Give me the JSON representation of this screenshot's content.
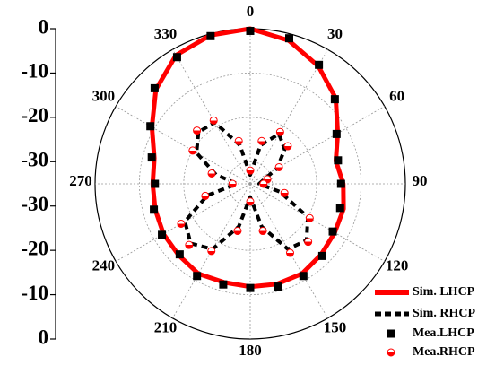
{
  "chart_data": {
    "type": "polar",
    "direction": "clockwise",
    "zero": "top",
    "theta": [
      0,
      15,
      30,
      45,
      60,
      75,
      90,
      105,
      120,
      135,
      150,
      165,
      180,
      195,
      210,
      225,
      240,
      255,
      270,
      285,
      300,
      315,
      330,
      345
    ],
    "rlim": [
      -35,
      0
    ],
    "rticks": [
      0,
      -10,
      -20,
      -30
    ],
    "thetaticks": [
      0,
      30,
      60,
      90,
      120,
      150,
      180,
      210,
      240,
      270,
      300,
      330
    ],
    "grid": true,
    "legend": "lower right",
    "series": [
      {
        "name": "Sim. LHCP",
        "color": "#ff0000",
        "style": "line",
        "values": [
          0,
          -1.5,
          -4.3,
          -7.7,
          -12.2,
          -15,
          -14,
          -13.2,
          -13,
          -12.4,
          -11.6,
          -11.6,
          -11.8,
          -12,
          -11.6,
          -12.2,
          -12.4,
          -12.8,
          -13,
          -12.6,
          -9.4,
          -4.9,
          -1.5,
          -0.3
        ]
      },
      {
        "name": "Sim. RHCP",
        "color": "#000000",
        "style": "dashed",
        "values": [
          -33,
          -26,
          -22,
          -24,
          -28,
          -32,
          -33,
          -28,
          -20,
          -17,
          -18,
          -25,
          -32,
          -25,
          -18,
          -16,
          -18,
          -25,
          -32,
          -27,
          -21,
          -18.5,
          -19,
          -26
        ]
      },
      {
        "name": "Mea.LHCP",
        "color": "#000000",
        "style": "square",
        "values": [
          -0.5,
          -1,
          -4,
          -8,
          -12.5,
          -14.5,
          -14.5,
          -14,
          -13.5,
          -12,
          -11,
          -11,
          -11.5,
          -11.5,
          -11,
          -12.5,
          -12,
          -12.5,
          -13.5,
          -12,
          -9,
          -4.5,
          -2,
          -0.5
        ]
      },
      {
        "name": "Mea.RHCP",
        "color": "#ff0000",
        "style": "circle",
        "values": [
          -32,
          -25,
          -21.5,
          -23,
          -27.5,
          -31,
          -32,
          -27,
          -19.5,
          -16.5,
          -17,
          -24,
          -31,
          -24,
          -17.5,
          -15.5,
          -17,
          -24.5,
          -31,
          -26,
          -20,
          -18,
          -18.5,
          -25
        ]
      }
    ]
  }
}
